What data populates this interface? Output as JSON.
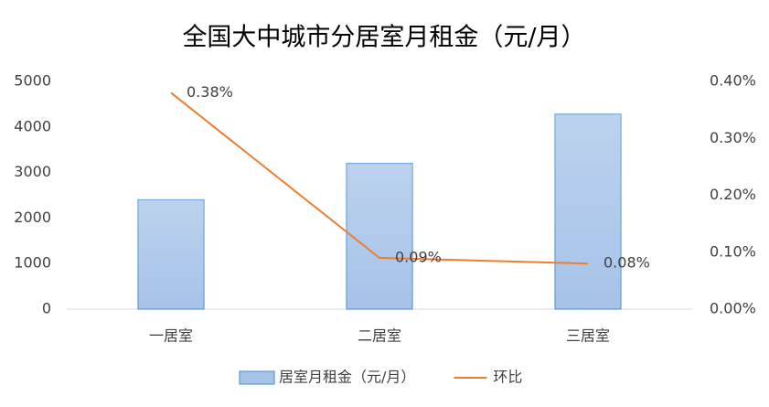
{
  "chart_data": {
    "type": "bar",
    "title": "全国大中城市分居室月租金（元/月）",
    "categories": [
      "一居室",
      "二居室",
      "三居室"
    ],
    "series": [
      {
        "name": "居室月租金（元/月）",
        "type": "bar",
        "color": "#a6c3e8",
        "values": [
          2400,
          3200,
          4280
        ]
      },
      {
        "name": "环比",
        "type": "line",
        "axis": "y2",
        "color": "#ed7d31",
        "values": [
          0.38,
          0.09,
          0.08
        ],
        "value_labels": [
          "0.38%",
          "0.09%",
          "0.08%"
        ]
      }
    ],
    "ylim": [
      0,
      5000
    ],
    "yticks": [
      0,
      1000,
      2000,
      3000,
      4000,
      5000
    ],
    "y2lim": [
      0,
      0.4
    ],
    "y2ticks": [
      {
        "value": 0,
        "label": "0.00%"
      },
      {
        "value": 0.1,
        "label": "0.10%"
      },
      {
        "value": 0.2,
        "label": "0.20%"
      },
      {
        "value": 0.3,
        "label": "0.30%"
      },
      {
        "value": 0.4,
        "label": "0.40%"
      }
    ],
    "legend": "bottom"
  }
}
